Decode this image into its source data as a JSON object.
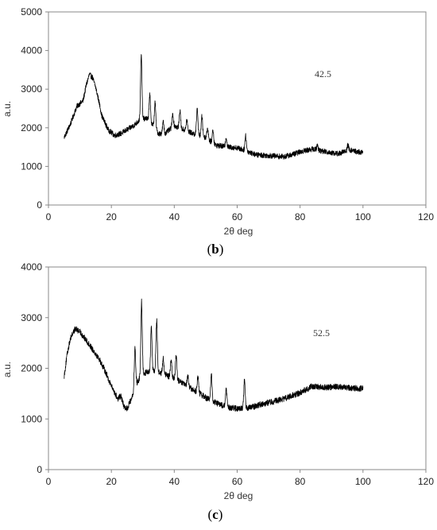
{
  "chart_data": [
    {
      "type": "line",
      "panel_label": "b",
      "annotation": "42.5",
      "xlabel": "2θ deg",
      "ylabel": "a.u.",
      "xlim": [
        0,
        120
      ],
      "ylim": [
        0,
        5000
      ],
      "xticks": [
        0,
        20,
        40,
        60,
        80,
        100,
        120
      ],
      "yticks": [
        0,
        1000,
        2000,
        3000,
        4000,
        5000
      ],
      "x_range": [
        5,
        100
      ],
      "noise": 70,
      "baseline": [
        [
          5,
          1750
        ],
        [
          7,
          2100
        ],
        [
          9,
          2550
        ],
        [
          11,
          2700
        ],
        [
          12,
          3100
        ],
        [
          13,
          3380
        ],
        [
          14,
          3300
        ],
        [
          15,
          3050
        ],
        [
          16,
          2700
        ],
        [
          17,
          2300
        ],
        [
          19,
          1950
        ],
        [
          21,
          1800
        ],
        [
          23,
          1850
        ],
        [
          25,
          1950
        ],
        [
          27,
          2050
        ],
        [
          29,
          2200
        ],
        [
          31,
          2250
        ],
        [
          33,
          2100
        ],
        [
          35,
          1850
        ],
        [
          37,
          1850
        ],
        [
          40,
          2050
        ],
        [
          43,
          1950
        ],
        [
          46,
          1850
        ],
        [
          50,
          1750
        ],
        [
          53,
          1550
        ],
        [
          57,
          1500
        ],
        [
          60,
          1480
        ],
        [
          63,
          1400
        ],
        [
          66,
          1300
        ],
        [
          70,
          1280
        ],
        [
          75,
          1250
        ],
        [
          78,
          1320
        ],
        [
          81,
          1400
        ],
        [
          84,
          1450
        ],
        [
          88,
          1380
        ],
        [
          92,
          1330
        ],
        [
          96,
          1420
        ],
        [
          100,
          1350
        ]
      ],
      "peaks": [
        [
          29.5,
          3870
        ],
        [
          32.2,
          2850
        ],
        [
          33.9,
          2650
        ],
        [
          36.5,
          2150
        ],
        [
          39.5,
          2350
        ],
        [
          41.8,
          2450
        ],
        [
          44.0,
          2200
        ],
        [
          47.3,
          2500
        ],
        [
          48.8,
          2300
        ],
        [
          50.6,
          2000
        ],
        [
          52.3,
          1950
        ],
        [
          56.5,
          1750
        ],
        [
          62.7,
          1800
        ],
        [
          85.5,
          1550
        ],
        [
          95.2,
          1550
        ]
      ]
    },
    {
      "type": "line",
      "panel_label": "c",
      "annotation": "52.5",
      "xlabel": "2θ deg",
      "ylabel": "a.u.",
      "xlim": [
        0,
        120
      ],
      "ylim": [
        0,
        4000
      ],
      "xticks": [
        0,
        20,
        40,
        60,
        80,
        100,
        120
      ],
      "yticks": [
        0,
        1000,
        2000,
        3000,
        4000
      ],
      "x_range": [
        5,
        100
      ],
      "noise": 60,
      "baseline": [
        [
          5,
          1850
        ],
        [
          6,
          2300
        ],
        [
          7,
          2600
        ],
        [
          8.5,
          2780
        ],
        [
          10,
          2720
        ],
        [
          12,
          2550
        ],
        [
          14,
          2380
        ],
        [
          16,
          2200
        ],
        [
          18,
          1950
        ],
        [
          20,
          1650
        ],
        [
          22,
          1400
        ],
        [
          23,
          1450
        ],
        [
          24,
          1250
        ],
        [
          25,
          1200
        ],
        [
          26,
          1350
        ],
        [
          27,
          1500
        ],
        [
          28,
          1700
        ],
        [
          30,
          1900
        ],
        [
          33,
          1950
        ],
        [
          36,
          1900
        ],
        [
          40,
          1800
        ],
        [
          44,
          1650
        ],
        [
          48,
          1500
        ],
        [
          52,
          1350
        ],
        [
          56,
          1250
        ],
        [
          60,
          1200
        ],
        [
          64,
          1220
        ],
        [
          68,
          1300
        ],
        [
          72,
          1350
        ],
        [
          76,
          1420
        ],
        [
          80,
          1520
        ],
        [
          84,
          1650
        ],
        [
          88,
          1620
        ],
        [
          92,
          1640
        ],
        [
          96,
          1610
        ],
        [
          100,
          1600
        ]
      ],
      "peaks": [
        [
          27.5,
          2400
        ],
        [
          29.6,
          3320
        ],
        [
          32.7,
          2800
        ],
        [
          34.4,
          2950
        ],
        [
          36.5,
          2200
        ],
        [
          39.0,
          2150
        ],
        [
          40.6,
          2250
        ],
        [
          44.3,
          1850
        ],
        [
          47.5,
          1850
        ],
        [
          51.8,
          1870
        ],
        [
          56.5,
          1580
        ],
        [
          62.3,
          1780
        ]
      ]
    }
  ]
}
